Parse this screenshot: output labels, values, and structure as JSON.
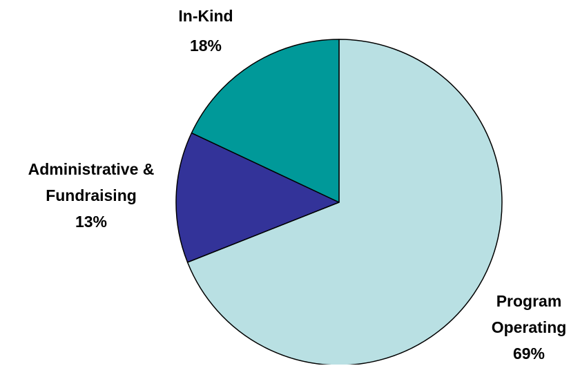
{
  "chart_data": {
    "type": "pie",
    "title": "",
    "slices": [
      {
        "name": "Program Operating",
        "label_lines": [
          "Program",
          "Operating"
        ],
        "value": 69,
        "value_label": "69%",
        "color": "#b9e0e3"
      },
      {
        "name": "Administrative & Fundraising",
        "label_lines": [
          "Administrative &",
          "Fundraising"
        ],
        "value": 13,
        "value_label": "13%",
        "color": "#333399"
      },
      {
        "name": "In-Kind",
        "label_lines": [
          "In-Kind"
        ],
        "value": 18,
        "value_label": "18%",
        "color": "#009999"
      }
    ],
    "start_angle_deg": 0,
    "direction": "clockwise",
    "outline_color": "#000000",
    "legend": "none"
  }
}
